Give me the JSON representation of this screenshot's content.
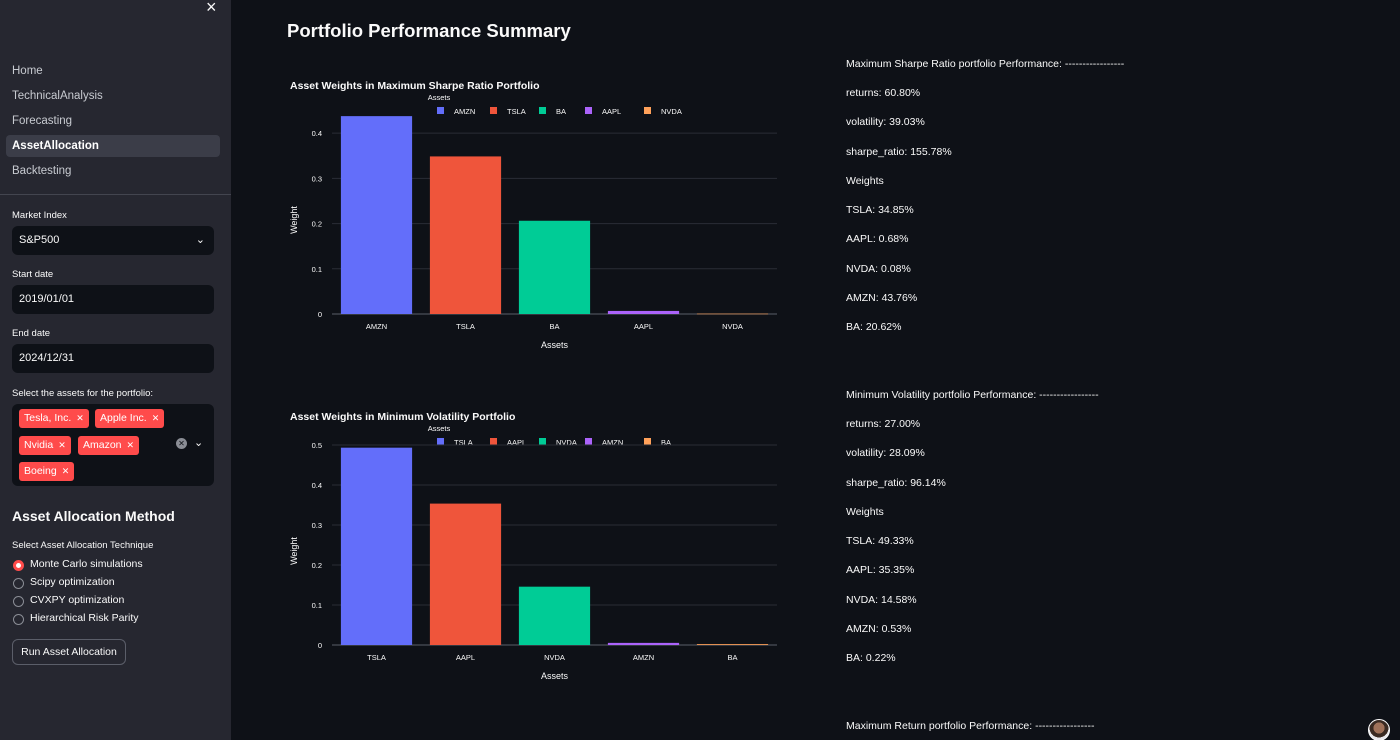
{
  "sidebar": {
    "close_icon": "×",
    "nav": [
      "Home",
      "TechnicalAnalysis",
      "Forecasting",
      "AssetAllocation",
      "Backtesting"
    ],
    "market_index": {
      "label": "Market Index",
      "value": "S&P500"
    },
    "start_date": {
      "label": "Start date",
      "value": "2019/01/01"
    },
    "end_date": {
      "label": "End date",
      "value": "2024/12/31"
    },
    "assets": {
      "label": "Select the assets for the portfolio:",
      "tags": [
        "Tesla, Inc.",
        "Apple Inc.",
        "Nvidia",
        "Amazon",
        "Boeing"
      ]
    },
    "method_heading": "Asset Allocation Method",
    "technique_label": "Select Asset Allocation Technique",
    "techniques": [
      "Monte Carlo simulations",
      "Scipy optimization",
      "CVXPY optimization",
      "Hierarchical Risk Parity"
    ],
    "selected_technique": "Monte Carlo simulations",
    "run_button": "Run Asset Allocation"
  },
  "main": {
    "page_title": "Portfolio Performance Summary",
    "max_sharpe": {
      "header": "Maximum Sharpe Ratio portfolio Performance: -----------------",
      "lines": [
        "returns: 60.80%",
        "volatility: 39.03%",
        "sharpe_ratio: 155.78%",
        "Weights",
        "TSLA: 34.85%",
        "AAPL: 0.68%",
        "NVDA: 0.08%",
        "AMZN: 43.76%",
        "BA: 20.62%"
      ]
    },
    "min_vol": {
      "header": "Minimum Volatility portfolio Performance: -----------------",
      "lines": [
        "returns: 27.00%",
        "volatility: 28.09%",
        "sharpe_ratio: 96.14%",
        "Weights",
        "TSLA: 49.33%",
        "AAPL: 35.35%",
        "NVDA: 14.58%",
        "AMZN: 0.53%",
        "BA: 0.22%"
      ]
    },
    "max_return": {
      "header": "Maximum Return portfolio Performance: -----------------"
    }
  },
  "colors": {
    "AMZN_bar1": "#636efa",
    "TSLA_bar1": "#ef553b",
    "BA_bar1": "#00cc96",
    "AAPL_bar1": "#ab63fa",
    "NVDA_bar1": "#ffa15a",
    "accent": "#ff4b4b"
  },
  "chart_data": [
    {
      "type": "bar",
      "title": "Asset Weights in Maximum Sharpe Ratio Portfolio",
      "legend_title": "Assets",
      "categories": [
        "AMZN",
        "TSLA",
        "BA",
        "AAPL",
        "NVDA"
      ],
      "values": [
        0.4376,
        0.3485,
        0.2062,
        0.0068,
        0.0008
      ],
      "colors": [
        "#636efa",
        "#ef553b",
        "#00cc96",
        "#ab63fa",
        "#ffa15a"
      ],
      "xlabel": "Assets",
      "ylabel": "Weight",
      "yticks": [
        "0",
        "0.1",
        "0.2",
        "0.3",
        "0.4"
      ],
      "ytick_values": [
        0,
        0.1,
        0.2,
        0.3,
        0.4
      ],
      "ylim": [
        0,
        0.46
      ],
      "legend_placement": "top"
    },
    {
      "type": "bar",
      "title": "Asset Weights in Minimum Volatility Portfolio",
      "legend_title": "Assets",
      "categories": [
        "TSLA",
        "AAPL",
        "NVDA",
        "AMZN",
        "BA"
      ],
      "values": [
        0.4933,
        0.3535,
        0.1458,
        0.0053,
        0.0022
      ],
      "colors": [
        "#636efa",
        "#ef553b",
        "#00cc96",
        "#ab63fa",
        "#ffa15a"
      ],
      "xlabel": "Assets",
      "ylabel": "Weight",
      "yticks": [
        "0",
        "0.1",
        "0.2",
        "0.3",
        "0.4",
        "0.5"
      ],
      "ytick_values": [
        0,
        0.1,
        0.2,
        0.3,
        0.4,
        0.5
      ],
      "ylim": [
        0,
        0.52
      ],
      "legend_placement": "top"
    }
  ]
}
